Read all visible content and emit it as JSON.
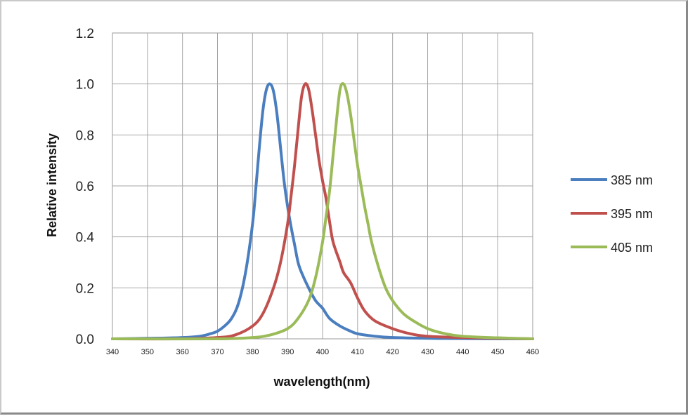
{
  "chart_data": {
    "type": "line",
    "title": "",
    "xlabel": "wavelength(nm)",
    "ylabel": "Relative intensity",
    "xlim": [
      340,
      460
    ],
    "ylim": [
      0,
      1.2
    ],
    "x_ticks": [
      340,
      350,
      360,
      370,
      380,
      390,
      400,
      410,
      420,
      430,
      440,
      450,
      460
    ],
    "x_tick_labels": [
      "340",
      "350",
      "360",
      "370",
      "380",
      "390",
      "400",
      "410",
      "420",
      "430",
      "440",
      "450",
      "460"
    ],
    "y_ticks": [
      0,
      0.2,
      0.4,
      0.6,
      0.8,
      1.0,
      1.2
    ],
    "y_tick_labels": [
      "0.0",
      "0.2",
      "0.4",
      "0.6",
      "0.8",
      "1.0",
      "1.2"
    ],
    "grid": true,
    "legend_position": "right",
    "series": [
      {
        "name": "385 nm",
        "color": "#4a7ebf",
        "x": [
          340,
          350,
          360,
          365,
          368,
          370,
          372,
          374,
          376,
          378,
          380,
          381,
          382,
          383,
          384,
          385,
          386,
          387,
          388,
          389,
          390,
          391,
          392,
          393,
          394,
          396,
          398,
          400,
          402,
          405,
          408,
          410,
          415,
          420,
          430,
          440,
          460
        ],
        "y": [
          0,
          0.002,
          0.005,
          0.01,
          0.02,
          0.03,
          0.05,
          0.08,
          0.14,
          0.26,
          0.45,
          0.6,
          0.76,
          0.9,
          0.98,
          1.0,
          0.97,
          0.88,
          0.75,
          0.62,
          0.52,
          0.44,
          0.37,
          0.3,
          0.26,
          0.2,
          0.15,
          0.12,
          0.08,
          0.05,
          0.03,
          0.02,
          0.01,
          0.005,
          0.002,
          0.001,
          0
        ]
      },
      {
        "name": "395 nm",
        "color": "#c0504d",
        "x": [
          340,
          360,
          370,
          375,
          380,
          383,
          386,
          388,
          390,
          391,
          392,
          393,
          394,
          395,
          396,
          397,
          398,
          399,
          400,
          401,
          402,
          403,
          405,
          406,
          408,
          410,
          412,
          415,
          420,
          425,
          430,
          440,
          460
        ],
        "y": [
          0,
          0,
          0.005,
          0.015,
          0.05,
          0.1,
          0.2,
          0.3,
          0.45,
          0.56,
          0.68,
          0.82,
          0.95,
          1.0,
          0.98,
          0.9,
          0.8,
          0.7,
          0.62,
          0.55,
          0.46,
          0.38,
          0.3,
          0.26,
          0.22,
          0.16,
          0.11,
          0.07,
          0.04,
          0.02,
          0.01,
          0.005,
          0
        ]
      },
      {
        "name": "405 nm",
        "color": "#9bbb59",
        "x": [
          340,
          370,
          380,
          385,
          390,
          393,
          396,
          398,
          400,
          401,
          402,
          403,
          404,
          405,
          406,
          407,
          408,
          409,
          410,
          411,
          412,
          413,
          414,
          416,
          418,
          420,
          423,
          426,
          430,
          435,
          440,
          450,
          460
        ],
        "y": [
          0,
          0,
          0.005,
          0.015,
          0.04,
          0.08,
          0.15,
          0.24,
          0.38,
          0.48,
          0.58,
          0.72,
          0.86,
          0.98,
          1.0,
          0.96,
          0.88,
          0.78,
          0.68,
          0.6,
          0.52,
          0.45,
          0.38,
          0.28,
          0.2,
          0.15,
          0.1,
          0.07,
          0.04,
          0.02,
          0.01,
          0.004,
          0
        ]
      }
    ]
  }
}
